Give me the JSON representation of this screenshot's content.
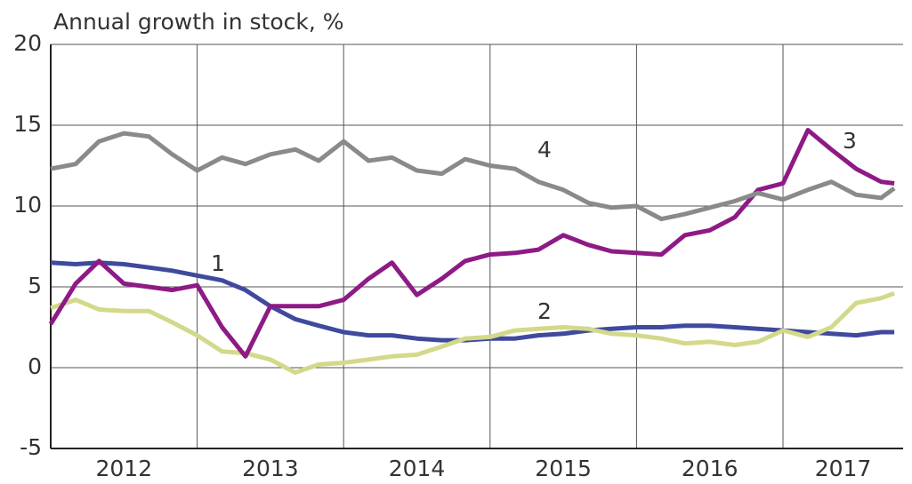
{
  "chart_data": {
    "type": "line",
    "title": "Annual growth in stock, %",
    "categories": [
      "2012",
      "2013",
      "2014",
      "2015",
      "2016",
      "2017"
    ],
    "x": [
      2012,
      2012.17,
      2012.33,
      2012.5,
      2012.67,
      2012.83,
      2013,
      2013.17,
      2013.33,
      2013.5,
      2013.67,
      2013.83,
      2014,
      2014.17,
      2014.33,
      2014.5,
      2014.67,
      2014.83,
      2015,
      2015.17,
      2015.33,
      2015.5,
      2015.67,
      2015.83,
      2016,
      2016.17,
      2016.33,
      2016.5,
      2016.67,
      2016.83,
      2017,
      2017.17,
      2017.33,
      2017.5,
      2017.67,
      2017.76
    ],
    "series": [
      {
        "name": "1",
        "color": "#3f4a9e",
        "values": [
          6.5,
          6.4,
          6.5,
          6.4,
          6.2,
          6.0,
          5.7,
          5.4,
          4.8,
          3.8,
          3.0,
          2.6,
          2.2,
          2.0,
          2.0,
          1.8,
          1.7,
          1.7,
          1.8,
          1.8,
          2.0,
          2.1,
          2.3,
          2.4,
          2.5,
          2.5,
          2.6,
          2.6,
          2.5,
          2.4,
          2.3,
          2.2,
          2.1,
          2.0,
          2.2,
          2.2
        ]
      },
      {
        "name": "2",
        "color": "#d3d98a",
        "values": [
          3.7,
          4.2,
          3.6,
          3.5,
          3.5,
          2.8,
          2.0,
          1.0,
          0.9,
          0.5,
          -0.3,
          0.2,
          0.3,
          0.5,
          0.7,
          0.8,
          1.3,
          1.8,
          1.9,
          2.3,
          2.4,
          2.5,
          2.4,
          2.1,
          2.0,
          1.8,
          1.5,
          1.6,
          1.4,
          1.6,
          2.3,
          1.9,
          2.5,
          4.0,
          4.3,
          4.6
        ]
      },
      {
        "name": "3",
        "color": "#8e1a86",
        "values": [
          2.7,
          5.2,
          6.6,
          5.2,
          5.0,
          4.8,
          5.1,
          2.5,
          0.7,
          3.8,
          3.8,
          3.8,
          4.2,
          5.5,
          6.5,
          4.5,
          5.5,
          6.6,
          7.0,
          7.1,
          7.3,
          8.2,
          7.6,
          7.2,
          7.1,
          7.0,
          8.2,
          8.5,
          9.3,
          11.0,
          11.4,
          14.7,
          13.5,
          12.3,
          11.5,
          11.4
        ]
      },
      {
        "name": "4",
        "color": "#8a8a8a",
        "values": [
          12.3,
          12.6,
          14.0,
          14.5,
          14.3,
          13.2,
          12.2,
          13.0,
          12.6,
          13.2,
          13.5,
          12.8,
          14.0,
          12.8,
          13.0,
          12.2,
          12.0,
          12.9,
          12.5,
          12.3,
          11.5,
          11.0,
          10.2,
          9.9,
          10.0,
          9.2,
          9.5,
          9.9,
          10.3,
          10.8,
          10.4,
          11.0,
          11.5,
          10.7,
          10.5,
          11.1
        ]
      }
    ],
    "xlim": [
      2012,
      2017.82
    ],
    "xticks": [
      2013,
      2014,
      2015,
      2016,
      2017
    ],
    "ylim": [
      -5,
      20
    ],
    "yticks": [
      -5,
      0,
      5,
      10,
      15,
      20
    ],
    "grid": true
  }
}
